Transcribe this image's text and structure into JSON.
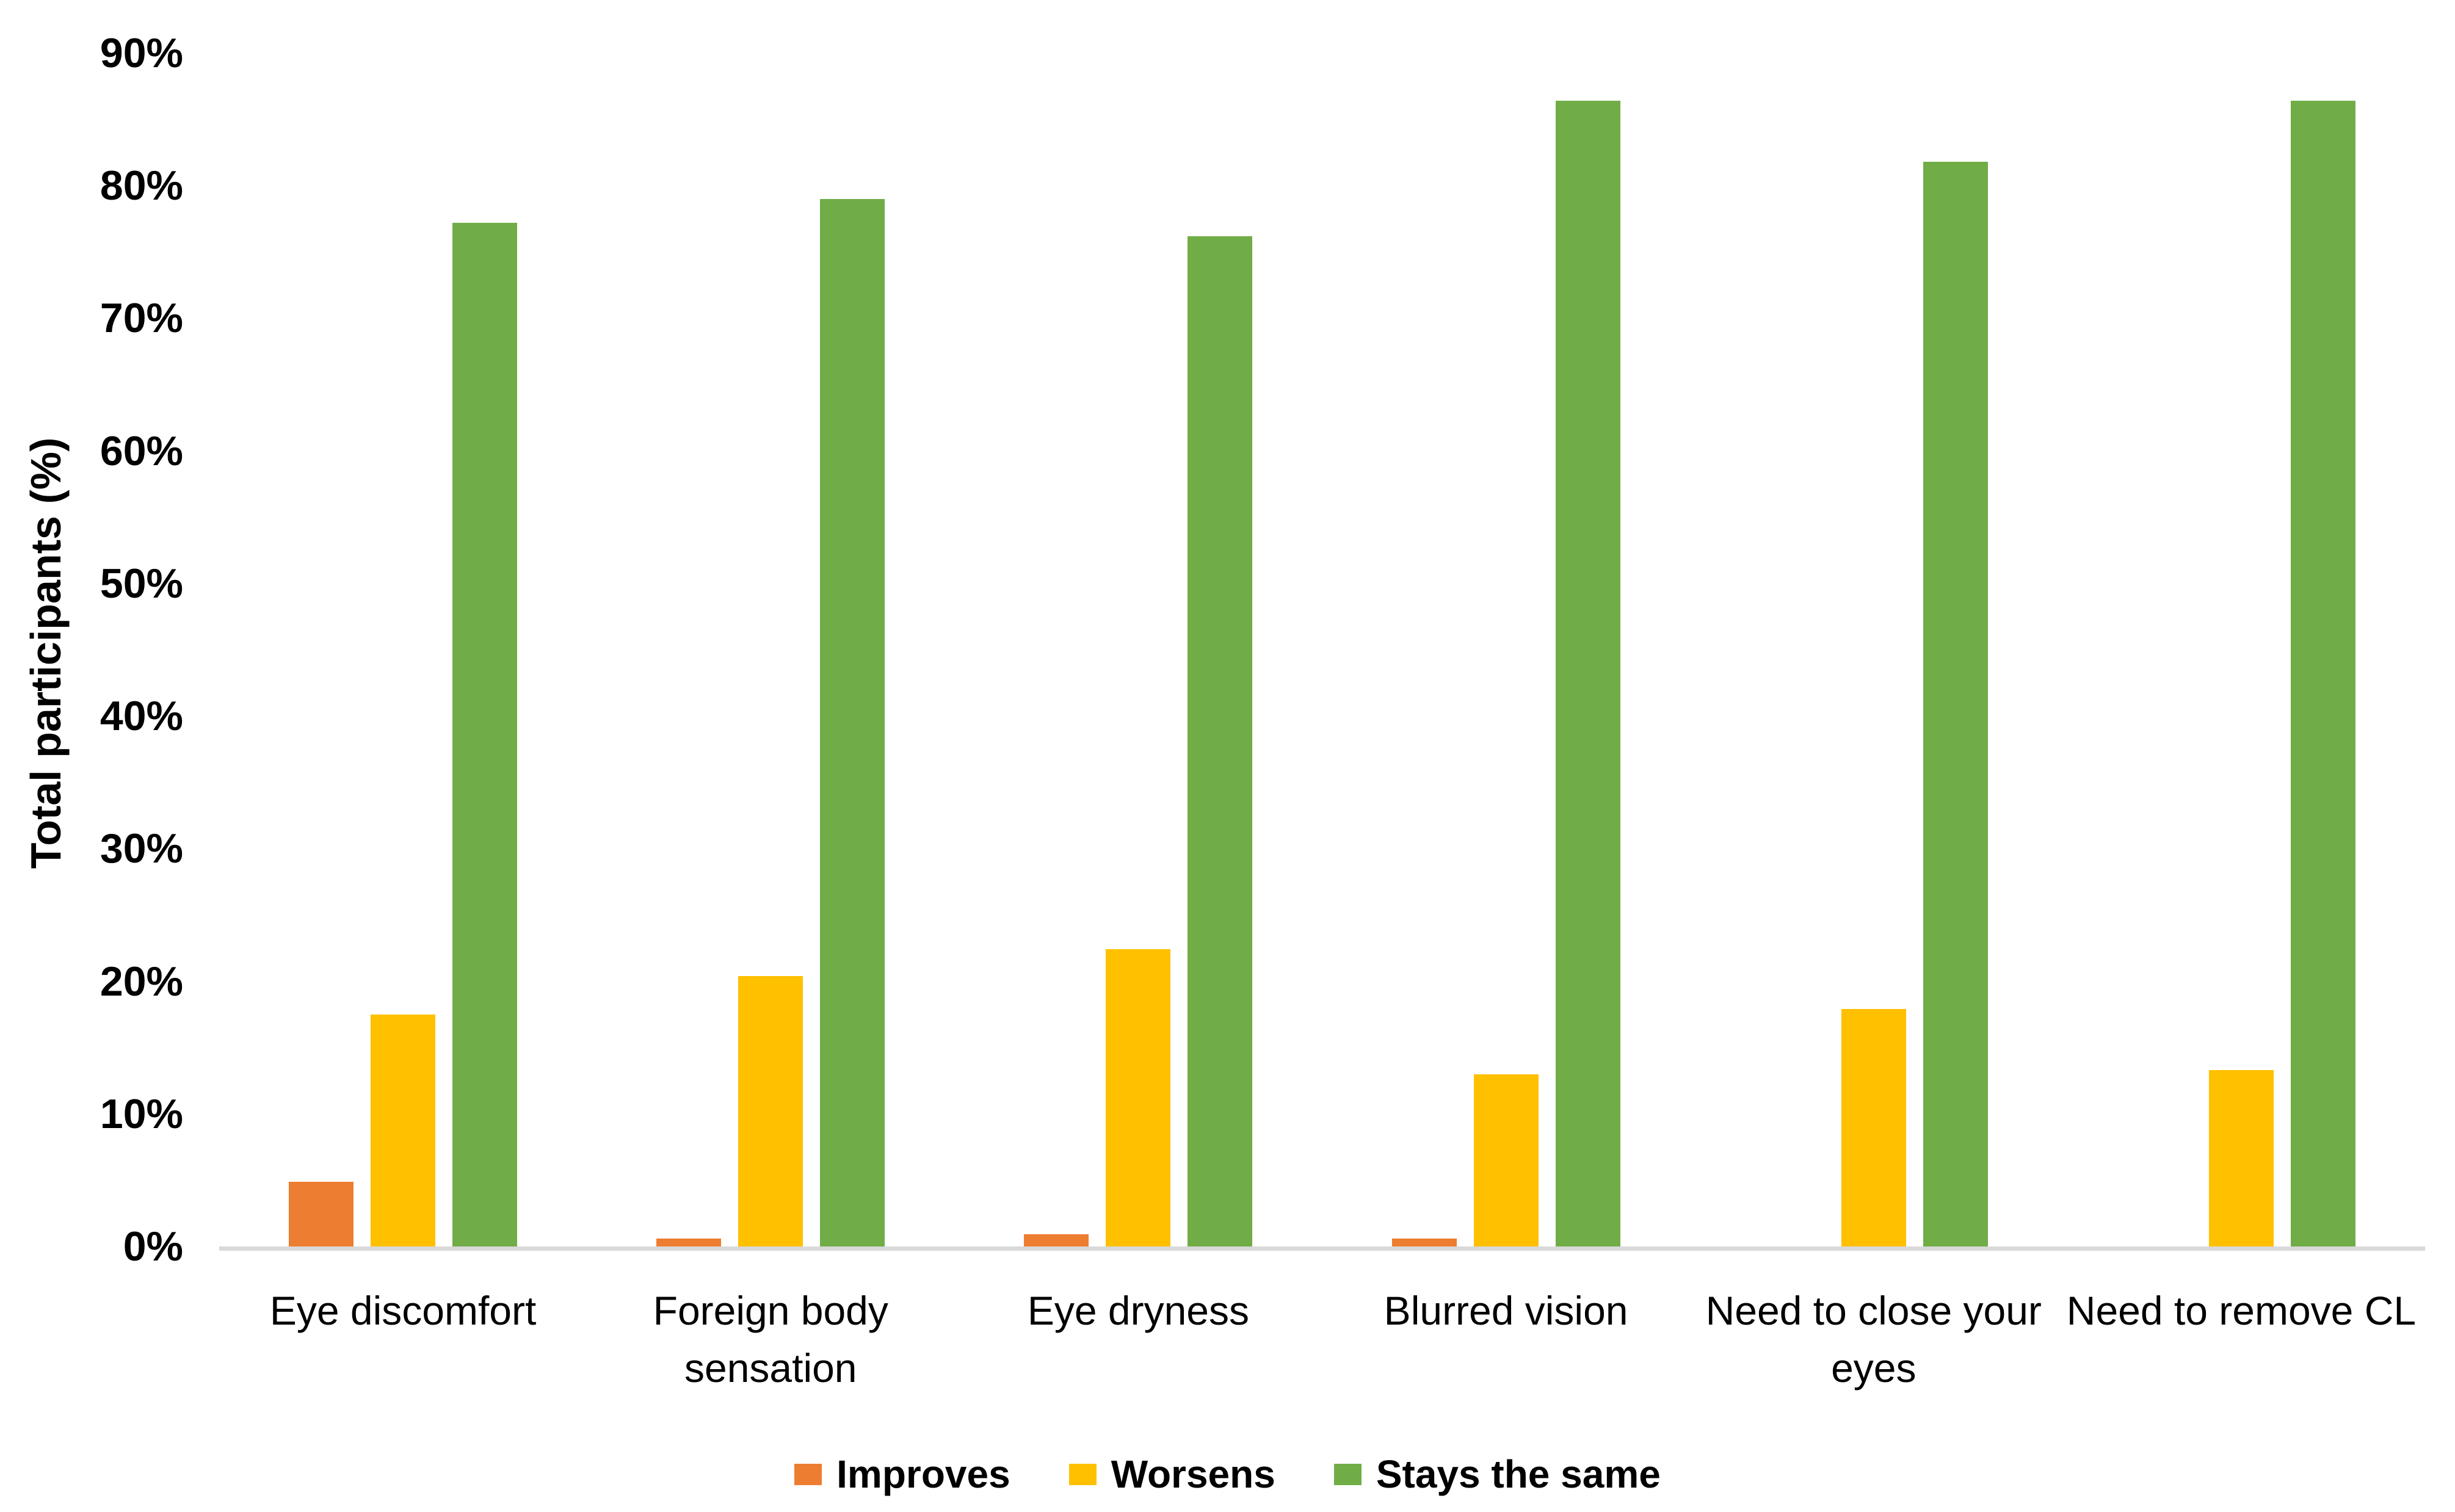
{
  "chart_data": {
    "type": "bar",
    "title": "",
    "xlabel": "",
    "ylabel": "Total participants (%)",
    "categories": [
      "Eye discomfort",
      "Foreign body sensation",
      "Eye dryness",
      "Blurred vision",
      "Need to close your eyes",
      "Need to remove CL"
    ],
    "series": [
      {
        "name": "Improves",
        "color": "#ED7D31",
        "values": [
          4.9,
          0.6,
          0.9,
          0.6,
          0.0,
          0.0
        ]
      },
      {
        "name": "Worsens",
        "color": "#FFC000",
        "values": [
          17.5,
          20.4,
          22.4,
          13.0,
          17.9,
          13.3
        ]
      },
      {
        "name": "Stays the same",
        "color": "#70AD47",
        "values": [
          77.2,
          79.0,
          76.2,
          86.4,
          81.8,
          86.4
        ]
      }
    ],
    "y_axis": {
      "min": 0,
      "max": 90,
      "step": 10,
      "tick_labels": [
        "0%",
        "10%",
        "20%",
        "30%",
        "40%",
        "50%",
        "60%",
        "70%",
        "80%",
        "90%"
      ]
    },
    "grid": false,
    "legend_position": "bottom",
    "colors": {
      "axis_line": "#D9D9D9",
      "text": "#000000",
      "background": "#FFFFFF"
    }
  }
}
